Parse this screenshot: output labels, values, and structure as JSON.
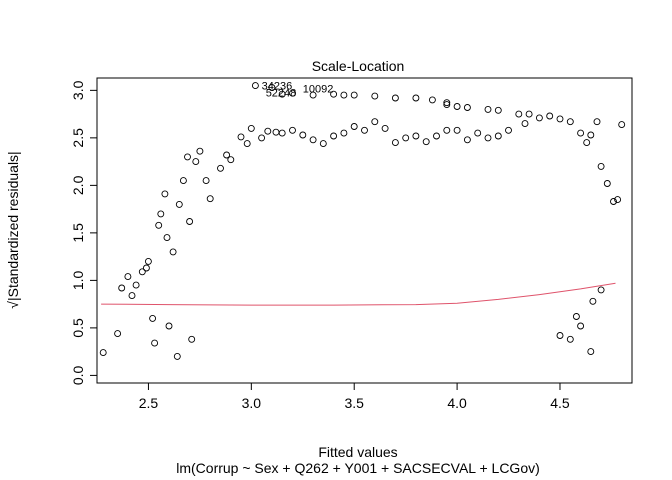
{
  "chart_data": {
    "type": "scatter",
    "title": "Scale-Location",
    "xlabel": "Fitted values",
    "ylabel": "√|Standardized residuals|",
    "subtitle": "lm(Corrup ~ Sex + Q262 + Y001 + SACSECVAL + LCGov)",
    "xlim": [
      2.25,
      4.85
    ],
    "ylim": [
      -0.08,
      3.13
    ],
    "xticks": [
      2.5,
      3.0,
      3.5,
      4.0,
      4.5
    ],
    "xtick_labels": [
      "2.5",
      "3.0",
      "3.5",
      "4.0",
      "4.5"
    ],
    "yticks": [
      0.0,
      0.5,
      1.0,
      1.5,
      2.0,
      2.5,
      3.0
    ],
    "ytick_labels": [
      "0.0",
      "0.5",
      "1.0",
      "1.5",
      "2.0",
      "2.5",
      "3.0"
    ],
    "annotations": [
      {
        "text": "34236",
        "x": 3.05,
        "y": 3.05
      },
      {
        "text": "52248",
        "x": 3.07,
        "y": 2.98
      },
      {
        "text": "10092",
        "x": 3.25,
        "y": 3.02
      }
    ],
    "smooth_line": {
      "color": "#DF536B",
      "x": [
        2.27,
        2.6,
        3.0,
        3.4,
        3.8,
        4.0,
        4.2,
        4.4,
        4.6,
        4.77
      ],
      "y": [
        0.75,
        0.745,
        0.74,
        0.74,
        0.745,
        0.76,
        0.8,
        0.85,
        0.91,
        0.97
      ]
    },
    "points": [
      [
        2.28,
        0.24
      ],
      [
        2.35,
        0.44
      ],
      [
        2.37,
        0.92
      ],
      [
        2.4,
        1.04
      ],
      [
        2.42,
        0.84
      ],
      [
        2.44,
        0.95
      ],
      [
        2.47,
        1.09
      ],
      [
        2.49,
        1.13
      ],
      [
        2.5,
        1.2
      ],
      [
        2.52,
        0.6
      ],
      [
        2.53,
        0.34
      ],
      [
        2.55,
        1.58
      ],
      [
        2.56,
        1.7
      ],
      [
        2.58,
        1.91
      ],
      [
        2.59,
        1.45
      ],
      [
        2.6,
        0.52
      ],
      [
        2.62,
        1.3
      ],
      [
        2.64,
        0.2
      ],
      [
        2.65,
        1.8
      ],
      [
        2.67,
        2.05
      ],
      [
        2.69,
        2.3
      ],
      [
        2.7,
        1.62
      ],
      [
        2.71,
        0.38
      ],
      [
        2.73,
        2.25
      ],
      [
        2.75,
        2.36
      ],
      [
        2.78,
        2.05
      ],
      [
        2.8,
        1.86
      ],
      [
        2.85,
        2.18
      ],
      [
        2.88,
        2.32
      ],
      [
        2.9,
        2.27
      ],
      [
        2.95,
        2.51
      ],
      [
        2.98,
        2.44
      ],
      [
        3.0,
        2.6
      ],
      [
        3.05,
        2.5
      ],
      [
        3.08,
        2.57
      ],
      [
        3.12,
        2.56
      ],
      [
        3.15,
        2.55
      ],
      [
        3.2,
        2.58
      ],
      [
        3.25,
        2.53
      ],
      [
        3.3,
        2.48
      ],
      [
        3.35,
        2.44
      ],
      [
        3.4,
        2.52
      ],
      [
        3.45,
        2.55
      ],
      [
        3.5,
        2.62
      ],
      [
        3.55,
        2.58
      ],
      [
        3.6,
        2.67
      ],
      [
        3.65,
        2.6
      ],
      [
        3.7,
        2.45
      ],
      [
        3.75,
        2.5
      ],
      [
        3.8,
        2.52
      ],
      [
        3.85,
        2.46
      ],
      [
        3.9,
        2.52
      ],
      [
        3.95,
        2.58
      ],
      [
        4.0,
        2.58
      ],
      [
        4.05,
        2.48
      ],
      [
        4.1,
        2.55
      ],
      [
        4.15,
        2.5
      ],
      [
        4.2,
        2.52
      ],
      [
        4.25,
        2.58
      ],
      [
        4.3,
        2.75
      ],
      [
        4.33,
        2.65
      ],
      [
        4.35,
        2.75
      ],
      [
        4.4,
        2.71
      ],
      [
        4.45,
        2.73
      ],
      [
        4.5,
        2.7
      ],
      [
        4.55,
        2.67
      ],
      [
        4.6,
        2.55
      ],
      [
        4.63,
        2.45
      ],
      [
        4.65,
        2.53
      ],
      [
        4.68,
        2.67
      ],
      [
        4.7,
        2.2
      ],
      [
        4.73,
        2.02
      ],
      [
        4.76,
        1.83
      ],
      [
        4.78,
        1.85
      ],
      [
        4.8,
        2.64
      ],
      [
        4.58,
        0.62
      ],
      [
        4.6,
        0.52
      ],
      [
        4.65,
        0.25
      ],
      [
        4.55,
        0.38
      ],
      [
        4.5,
        0.42
      ],
      [
        4.66,
        0.78
      ],
      [
        4.7,
        0.9
      ],
      [
        3.15,
        2.96
      ],
      [
        3.2,
        2.97
      ],
      [
        3.3,
        2.95
      ],
      [
        3.4,
        2.96
      ],
      [
        3.45,
        2.95
      ],
      [
        3.5,
        2.95
      ],
      [
        3.6,
        2.94
      ],
      [
        3.7,
        2.92
      ],
      [
        3.8,
        2.92
      ],
      [
        3.88,
        2.9
      ],
      [
        3.95,
        2.87
      ],
      [
        4.0,
        2.83
      ],
      [
        4.05,
        2.82
      ],
      [
        4.15,
        2.8
      ],
      [
        3.02,
        3.05
      ],
      [
        3.1,
        3.03
      ],
      [
        3.95,
        2.85
      ],
      [
        4.2,
        2.79
      ]
    ]
  }
}
